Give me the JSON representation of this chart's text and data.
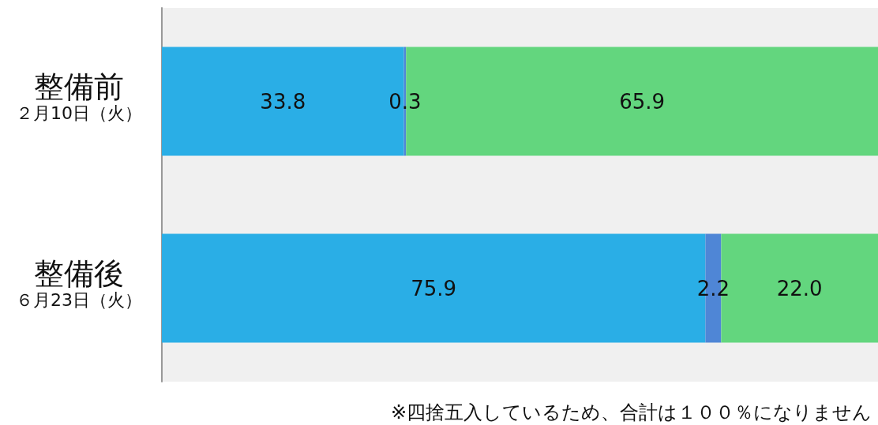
{
  "chart_data": {
    "type": "bar",
    "orientation": "horizontal",
    "stacked": true,
    "tick_labels": "y",
    "grid": false,
    "categories": [
      "整備前",
      "整備後"
    ],
    "xlim": [
      0,
      100
    ],
    "series": [
      {
        "color": "#2aaee6",
        "values": [
          33.8,
          75.9
        ],
        "value_labels": [
          "33.8",
          "75.9"
        ]
      },
      {
        "color": "#4f86d6",
        "values": [
          0.3,
          2.2
        ],
        "value_labels": [
          "0.3",
          "2.2"
        ]
      },
      {
        "color": "#63d67e",
        "values": [
          65.9,
          22.0
        ],
        "value_labels": [
          "65.9",
          "22.0"
        ]
      }
    ],
    "annotations": [
      "２月10日（火）",
      "６月23日（火）",
      "※四捨五入しているため、合計は１００％になりません"
    ]
  }
}
